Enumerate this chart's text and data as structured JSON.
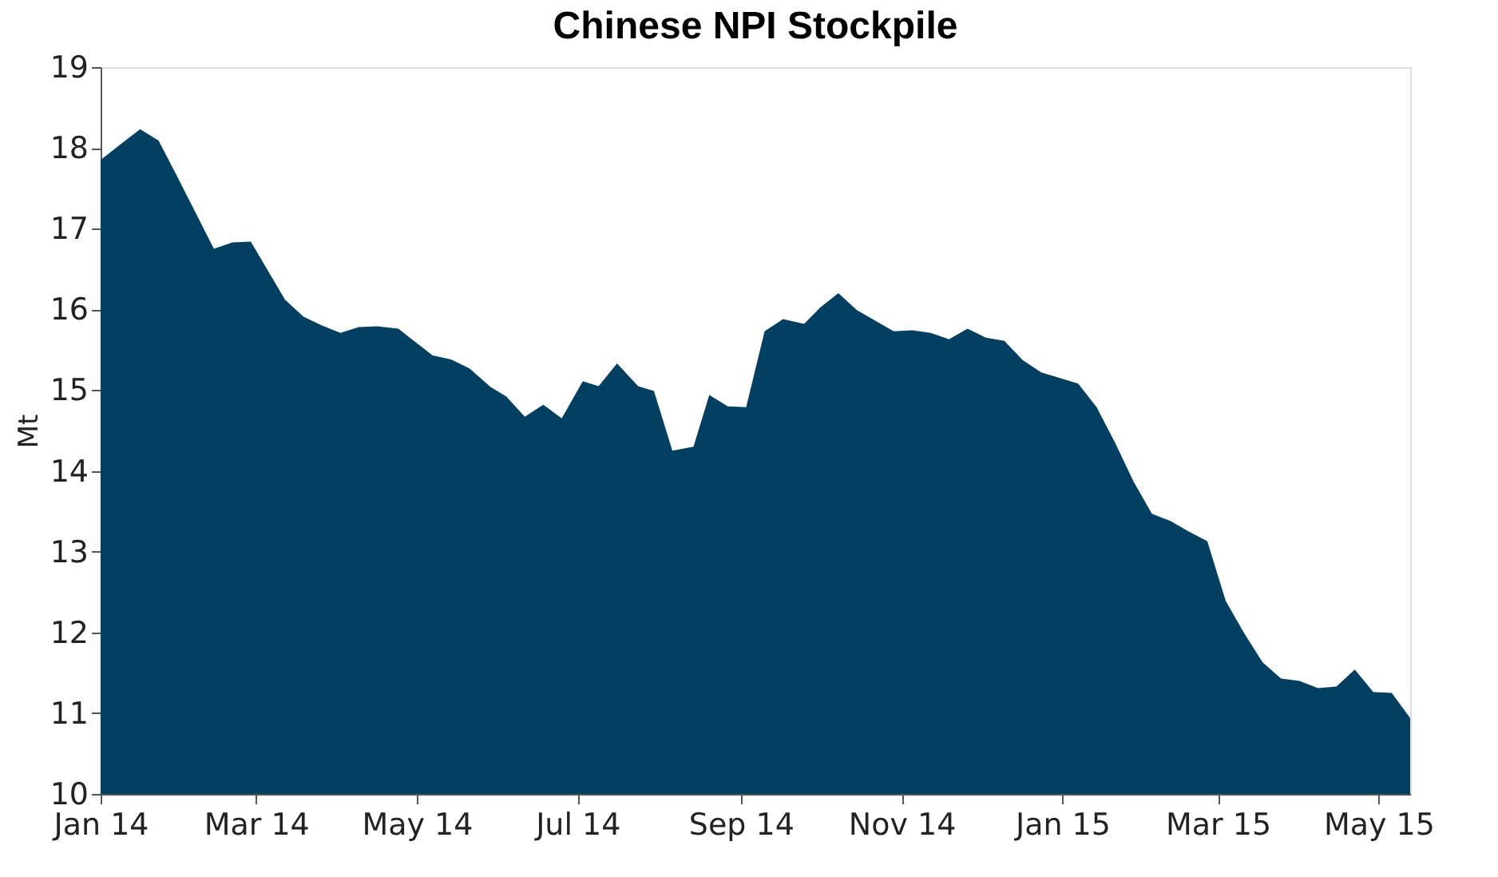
{
  "chart_data": {
    "type": "area",
    "title": "Chinese NPI Stockpile",
    "ylabel": "Mt",
    "x": [
      "2014-01-01",
      "2014-01-10",
      "2014-01-16",
      "2014-01-23",
      "2014-01-30",
      "2014-02-06",
      "2014-02-13",
      "2014-02-20",
      "2014-02-27",
      "2014-03-12",
      "2014-03-19",
      "2014-03-26",
      "2014-04-02",
      "2014-04-09",
      "2014-04-16",
      "2014-04-24",
      "2014-05-07",
      "2014-05-14",
      "2014-05-21",
      "2014-05-29",
      "2014-06-04",
      "2014-06-11",
      "2014-06-18",
      "2014-06-25",
      "2014-07-03",
      "2014-07-09",
      "2014-07-16",
      "2014-07-24",
      "2014-07-30",
      "2014-08-06",
      "2014-08-14",
      "2014-08-20",
      "2014-08-27",
      "2014-09-03",
      "2014-09-10",
      "2014-09-17",
      "2014-09-25",
      "2014-10-01",
      "2014-10-08",
      "2014-10-15",
      "2014-10-22",
      "2014-10-29",
      "2014-11-05",
      "2014-11-12",
      "2014-11-19",
      "2014-11-26",
      "2014-12-03",
      "2014-12-10",
      "2014-12-17",
      "2014-12-24",
      "2014-12-31",
      "2015-01-07",
      "2015-01-14",
      "2015-01-21",
      "2015-01-28",
      "2015-02-04",
      "2015-02-11",
      "2015-02-18",
      "2015-02-25",
      "2015-03-04",
      "2015-03-11",
      "2015-03-18",
      "2015-03-25",
      "2015-04-01",
      "2015-04-08",
      "2015-04-15",
      "2015-04-22",
      "2015-04-29",
      "2015-05-06",
      "2015-05-13"
    ],
    "series": [
      {
        "color": "#023f60",
        "values": [
          17.85,
          18.08,
          18.23,
          18.09,
          17.65,
          17.2,
          16.75,
          16.83,
          16.84,
          16.12,
          15.91,
          15.8,
          15.71,
          15.78,
          15.79,
          15.76,
          15.43,
          15.38,
          15.27,
          15.04,
          14.92,
          14.67,
          14.82,
          14.65,
          15.11,
          15.05,
          15.33,
          15.05,
          14.99,
          14.25,
          14.3,
          14.94,
          14.8,
          14.79,
          15.73,
          15.88,
          15.82,
          16.02,
          16.2,
          15.99,
          15.86,
          15.73,
          15.74,
          15.71,
          15.63,
          15.76,
          15.65,
          15.61,
          15.37,
          15.22,
          15.15,
          15.08,
          14.79,
          14.35,
          13.87,
          13.47,
          13.38,
          13.25,
          13.13,
          12.39,
          11.99,
          11.63,
          11.43,
          11.4,
          11.31,
          11.33,
          11.54,
          11.26,
          11.25,
          10.94
        ]
      }
    ],
    "xlim": [
      "2014-01-01",
      "2015-05-13"
    ],
    "xticks": [
      {
        "value": "2014-01-01",
        "label": "Jan 14"
      },
      {
        "value": "2014-03-01",
        "label": "Mar 14"
      },
      {
        "value": "2014-05-01",
        "label": "May 14"
      },
      {
        "value": "2014-07-01",
        "label": "Jul 14"
      },
      {
        "value": "2014-09-01",
        "label": "Sep 14"
      },
      {
        "value": "2014-11-01",
        "label": "Nov 14"
      },
      {
        "value": "2015-01-01",
        "label": "Jan 15"
      },
      {
        "value": "2015-03-01",
        "label": "Mar 15"
      },
      {
        "value": "2015-05-01",
        "label": "May 15"
      }
    ],
    "ylim": [
      10,
      19
    ],
    "yticks": [
      10,
      11,
      12,
      13,
      14,
      15,
      16,
      17,
      18,
      19
    ],
    "grid": false
  }
}
